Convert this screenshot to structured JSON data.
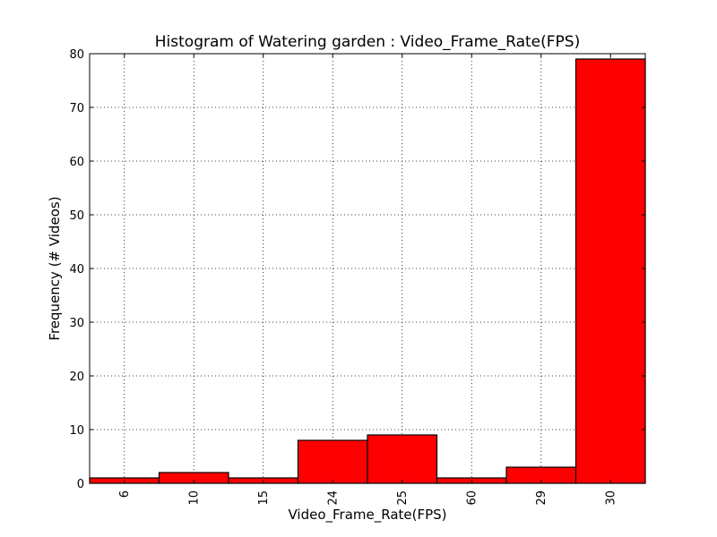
{
  "chart_data": {
    "type": "bar",
    "title": "Histogram of Watering garden : Video_Frame_Rate(FPS)",
    "xlabel": "Video_Frame_Rate(FPS)",
    "ylabel": "Frequency (# Videos)",
    "categories": [
      "6",
      "10",
      "15",
      "24",
      "25",
      "60",
      "29",
      "30"
    ],
    "values": [
      1,
      2,
      1,
      8,
      9,
      1,
      3,
      79
    ],
    "ylim": [
      0,
      80
    ],
    "yticks": [
      0,
      10,
      20,
      30,
      40,
      50,
      60,
      70,
      80
    ],
    "grid": true,
    "bar_color": "#ff0000",
    "edge_color": "#000000"
  }
}
